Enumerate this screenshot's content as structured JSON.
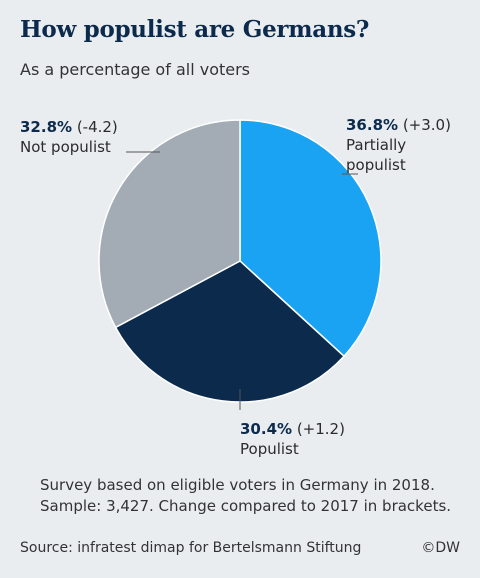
{
  "title": "How populist are Germans?",
  "subtitle": "As a percentage of all voters",
  "chart_data": {
    "type": "pie",
    "title": "How populist are Germans?",
    "subtitle": "As a percentage of all voters",
    "slices": [
      {
        "value_label": "36.8%",
        "change_label": "(+3.0)",
        "label_lines": [
          "Partially",
          "populist"
        ],
        "value": 36.8,
        "change": 3.0,
        "color": "#1aa3f2"
      },
      {
        "value_label": "30.4%",
        "change_label": "(+1.2)",
        "label_lines": [
          "Populist"
        ],
        "value": 30.4,
        "change": 1.2,
        "color": "#0c2a4c"
      },
      {
        "value_label": "32.8%",
        "change_label": "(-4.2)",
        "label_lines": [
          "Not populist"
        ],
        "value": 32.8,
        "change": -4.2,
        "color": "#a3acb4"
      }
    ]
  },
  "note_lines": [
    "Survey based on eligible voters in Germany in 2018.",
    "Sample: 3,427. Change compared to 2017 in brackets."
  ],
  "source": "Source: infratest dimap for Bertelsmann Stiftung",
  "credit": "©DW"
}
